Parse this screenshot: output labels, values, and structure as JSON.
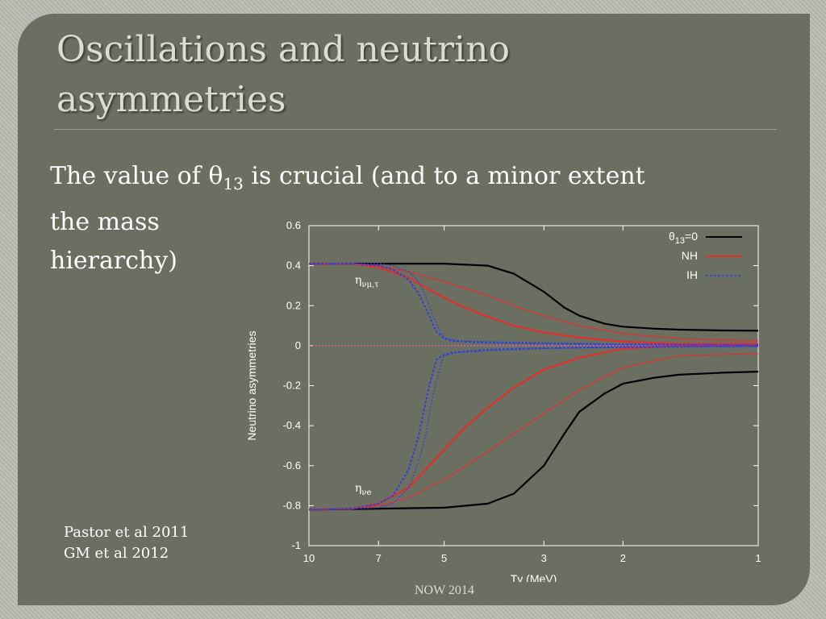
{
  "slide": {
    "title_line1": "Oscillations and neutrino",
    "title_line2": "asymmetries",
    "body_part1": "The value of ",
    "theta_symbol": "θ",
    "theta_subscript": "13",
    "body_part2": " is crucial (and to a minor extent",
    "body_line2": "the mass",
    "body_line3": "hierarchy)",
    "credit1": "Pastor et al 2011",
    "credit2": "GM et al  2012",
    "footer": "NOW 2014"
  },
  "colors": {
    "slide_bg": "#6b6f62",
    "plot_bg": "#6b6f62",
    "theta13_zero": "#000000",
    "nh": "#e0302c",
    "ih": "#3340d8"
  },
  "chart_data": {
    "type": "line",
    "xlabel": "Tγ (MeV)",
    "ylabel": "Neutrino asymmetries",
    "x_scale": "log-reversed",
    "xlim": [
      10,
      1
    ],
    "ylim": [
      -1,
      0.6
    ],
    "x_ticks": [
      10,
      7,
      5,
      3,
      2,
      1
    ],
    "y_ticks": [
      0.6,
      0.4,
      0.2,
      0,
      -0.2,
      -0.4,
      -0.6,
      -0.8,
      -1
    ],
    "y_tick_labels": [
      "0.6",
      "0.4",
      "0.2",
      "0",
      "-0.2",
      "-0.4",
      "-0.6",
      "-0.8",
      "-1"
    ],
    "legend_position": "top-right",
    "legend": [
      {
        "label_prefix": "θ",
        "label_sub": "13",
        "label_suffix": "=0",
        "series": "theta13_zero"
      },
      {
        "label": "NH",
        "series": "nh"
      },
      {
        "label": "IH",
        "series": "ih"
      }
    ],
    "annotations": [
      {
        "text": "η",
        "sub": "νμ,τ",
        "x": 7.9,
        "y": 0.31
      },
      {
        "text": "η",
        "sub": "νe",
        "x": 7.9,
        "y": -0.73
      }
    ],
    "series": [
      {
        "group": "theta13_zero",
        "style": "solid-thick",
        "x": [
          10,
          7,
          5,
          4,
          3.5,
          3,
          2.7,
          2.5,
          2.2,
          2,
          1.7,
          1.5,
          1.2,
          1
        ],
        "y": [
          0.41,
          0.41,
          0.41,
          0.4,
          0.36,
          0.27,
          0.19,
          0.15,
          0.11,
          0.095,
          0.085,
          0.08,
          0.076,
          0.075
        ]
      },
      {
        "group": "theta13_zero",
        "style": "solid-thick",
        "x": [
          10,
          7,
          5,
          4,
          3.5,
          3,
          2.7,
          2.5,
          2.2,
          2,
          1.7,
          1.5,
          1.2,
          1
        ],
        "y": [
          -0.82,
          -0.815,
          -0.81,
          -0.79,
          -0.74,
          -0.6,
          -0.44,
          -0.33,
          -0.24,
          -0.19,
          -0.16,
          -0.145,
          -0.135,
          -0.13
        ]
      },
      {
        "group": "nh",
        "style": "solid-thick",
        "x": [
          10,
          8,
          7,
          6,
          5.5,
          5,
          4.5,
          4,
          3.5,
          3,
          2.5,
          2,
          1.5,
          1
        ],
        "y": [
          0.41,
          0.41,
          0.39,
          0.34,
          0.29,
          0.24,
          0.19,
          0.145,
          0.1,
          0.065,
          0.04,
          0.02,
          0.01,
          0.01
        ]
      },
      {
        "group": "nh",
        "style": "solid-thick",
        "x": [
          10,
          8,
          7,
          6,
          5.5,
          5,
          4.5,
          4,
          3.5,
          3,
          2.5,
          2,
          1.5,
          1
        ],
        "y": [
          -0.82,
          -0.815,
          -0.79,
          -0.71,
          -0.62,
          -0.52,
          -0.41,
          -0.31,
          -0.21,
          -0.12,
          -0.06,
          -0.015,
          0,
          0
        ]
      },
      {
        "group": "nh",
        "style": "solid-thin",
        "x": [
          10,
          8,
          7,
          6,
          5,
          4,
          3.5,
          3,
          2.5,
          2,
          1.5,
          1
        ],
        "y": [
          0.41,
          0.41,
          0.4,
          0.37,
          0.32,
          0.25,
          0.2,
          0.15,
          0.1,
          0.06,
          0.035,
          0.025
        ]
      },
      {
        "group": "nh",
        "style": "solid-thin",
        "x": [
          10,
          8,
          7,
          6,
          5,
          4,
          3.5,
          3,
          2.5,
          2,
          1.5,
          1
        ],
        "y": [
          -0.82,
          -0.815,
          -0.8,
          -0.76,
          -0.67,
          -0.53,
          -0.44,
          -0.34,
          -0.22,
          -0.11,
          -0.05,
          -0.04
        ]
      },
      {
        "group": "ih",
        "style": "dashed",
        "x": [
          10,
          8,
          7,
          6.5,
          6,
          5.7,
          5.4,
          5.2,
          5,
          4.8,
          4.5,
          4,
          3,
          2,
          1
        ],
        "y": [
          0.41,
          0.41,
          0.4,
          0.38,
          0.33,
          0.26,
          0.15,
          0.07,
          0.035,
          0.025,
          0.02,
          0.015,
          0.01,
          0.005,
          0.003
        ]
      },
      {
        "group": "ih",
        "style": "dashed",
        "x": [
          10,
          8,
          7,
          6.5,
          6,
          5.7,
          5.4,
          5.2,
          5,
          4.8,
          4.5,
          4,
          3,
          2,
          1
        ],
        "y": [
          -0.82,
          -0.815,
          -0.79,
          -0.75,
          -0.62,
          -0.45,
          -0.2,
          -0.07,
          -0.045,
          -0.035,
          -0.03,
          -0.02,
          -0.012,
          -0.006,
          -0.003
        ]
      },
      {
        "group": "ih",
        "style": "dashed-thin",
        "x": [
          10,
          8,
          7,
          6.5,
          6,
          5.7,
          5.5,
          5.3,
          5.1,
          5,
          4.7,
          4,
          3,
          2,
          1
        ],
        "y": [
          0.41,
          0.41,
          0.41,
          0.4,
          0.37,
          0.32,
          0.25,
          0.15,
          0.07,
          0.04,
          0.025,
          0.02,
          0.015,
          0.008,
          0.004
        ]
      },
      {
        "group": "ih",
        "style": "dashed-thin",
        "x": [
          10,
          8,
          7,
          6.5,
          6,
          5.7,
          5.5,
          5.3,
          5.1,
          5,
          4.7,
          4,
          3,
          2,
          1
        ],
        "y": [
          -0.82,
          -0.815,
          -0.81,
          -0.79,
          -0.71,
          -0.58,
          -0.45,
          -0.25,
          -0.1,
          -0.05,
          -0.035,
          -0.025,
          -0.015,
          -0.008,
          -0.004
        ]
      }
    ]
  }
}
